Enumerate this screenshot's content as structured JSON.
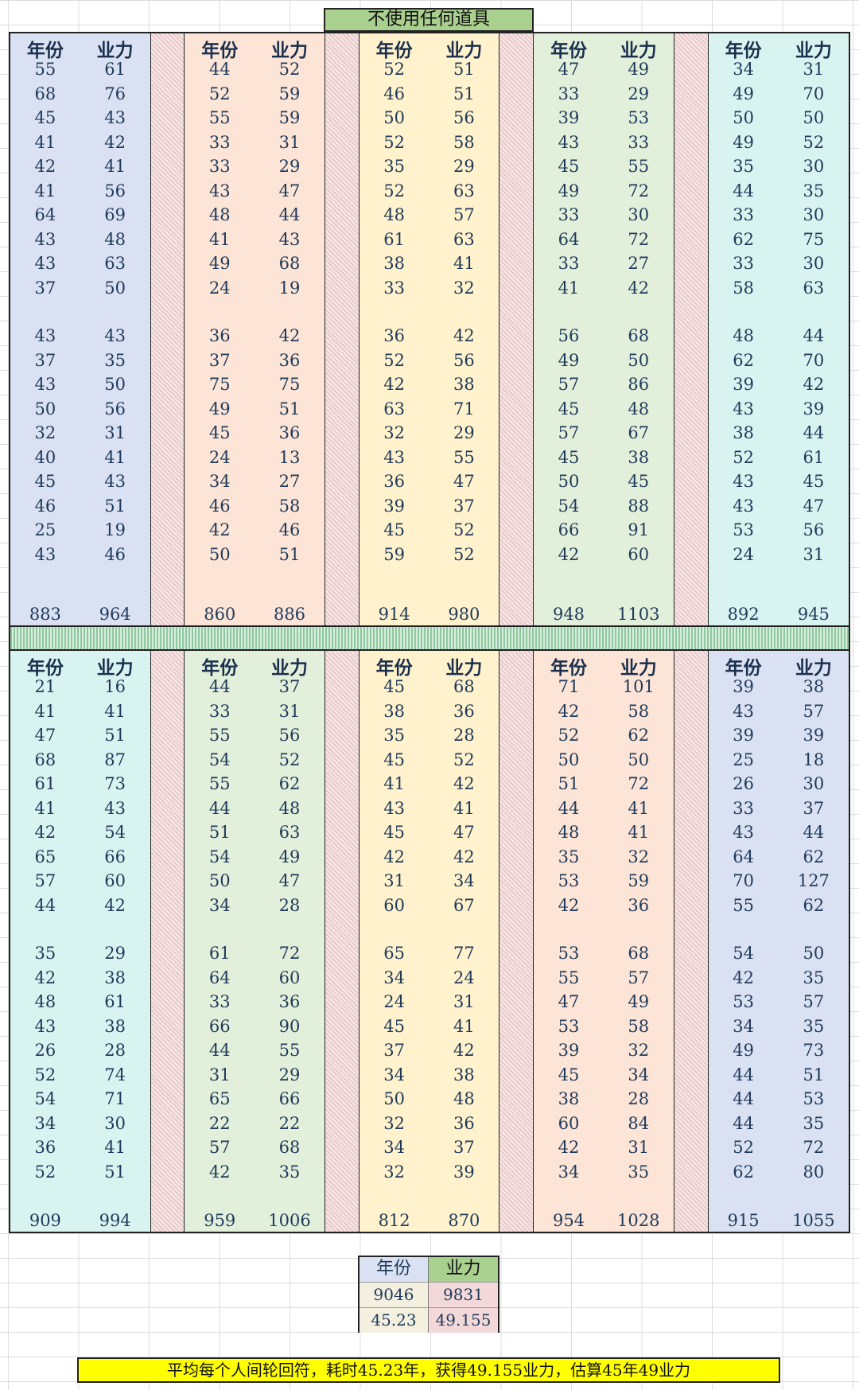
{
  "title": "不使用任何道具",
  "header": {
    "year": "年份",
    "karma": "业力"
  },
  "top_columns": [
    {
      "color": "blue",
      "rows": [
        [
          55,
          61
        ],
        [
          68,
          76
        ],
        [
          45,
          43
        ],
        [
          41,
          42
        ],
        [
          42,
          41
        ],
        [
          41,
          56
        ],
        [
          64,
          69
        ],
        [
          43,
          48
        ],
        [
          43,
          63
        ],
        [
          37,
          50
        ],
        [
          43,
          43
        ],
        [
          37,
          35
        ],
        [
          43,
          50
        ],
        [
          50,
          56
        ],
        [
          32,
          31
        ],
        [
          40,
          41
        ],
        [
          45,
          43
        ],
        [
          46,
          51
        ],
        [
          25,
          19
        ],
        [
          43,
          46
        ]
      ],
      "totals": [
        883,
        964
      ]
    },
    {
      "color": "orange",
      "rows": [
        [
          44,
          52
        ],
        [
          52,
          59
        ],
        [
          55,
          59
        ],
        [
          33,
          31
        ],
        [
          33,
          29
        ],
        [
          43,
          47
        ],
        [
          48,
          44
        ],
        [
          41,
          43
        ],
        [
          49,
          68
        ],
        [
          24,
          19
        ],
        [
          36,
          42
        ],
        [
          37,
          36
        ],
        [
          75,
          75
        ],
        [
          49,
          51
        ],
        [
          45,
          36
        ],
        [
          24,
          13
        ],
        [
          34,
          27
        ],
        [
          46,
          58
        ],
        [
          42,
          46
        ],
        [
          50,
          51
        ]
      ],
      "totals": [
        860,
        886
      ]
    },
    {
      "color": "yellow",
      "rows": [
        [
          52,
          51
        ],
        [
          46,
          51
        ],
        [
          50,
          56
        ],
        [
          52,
          58
        ],
        [
          35,
          29
        ],
        [
          52,
          63
        ],
        [
          48,
          57
        ],
        [
          61,
          63
        ],
        [
          38,
          41
        ],
        [
          33,
          32
        ],
        [
          36,
          42
        ],
        [
          52,
          56
        ],
        [
          42,
          38
        ],
        [
          63,
          71
        ],
        [
          32,
          29
        ],
        [
          43,
          55
        ],
        [
          36,
          47
        ],
        [
          39,
          37
        ],
        [
          45,
          52
        ],
        [
          59,
          52
        ]
      ],
      "totals": [
        914,
        980
      ]
    },
    {
      "color": "green",
      "rows": [
        [
          47,
          49
        ],
        [
          33,
          29
        ],
        [
          39,
          53
        ],
        [
          43,
          33
        ],
        [
          45,
          55
        ],
        [
          49,
          72
        ],
        [
          33,
          30
        ],
        [
          64,
          72
        ],
        [
          33,
          27
        ],
        [
          41,
          42
        ],
        [
          56,
          68
        ],
        [
          49,
          50
        ],
        [
          57,
          86
        ],
        [
          45,
          48
        ],
        [
          57,
          67
        ],
        [
          45,
          38
        ],
        [
          50,
          45
        ],
        [
          54,
          88
        ],
        [
          66,
          91
        ],
        [
          42,
          60
        ]
      ],
      "totals": [
        948,
        1103
      ]
    },
    {
      "color": "cyan",
      "rows": [
        [
          34,
          31
        ],
        [
          49,
          70
        ],
        [
          50,
          50
        ],
        [
          49,
          52
        ],
        [
          35,
          30
        ],
        [
          44,
          35
        ],
        [
          33,
          30
        ],
        [
          62,
          75
        ],
        [
          33,
          30
        ],
        [
          58,
          63
        ],
        [
          48,
          44
        ],
        [
          62,
          70
        ],
        [
          39,
          42
        ],
        [
          43,
          39
        ],
        [
          38,
          44
        ],
        [
          52,
          61
        ],
        [
          43,
          45
        ],
        [
          43,
          47
        ],
        [
          53,
          56
        ],
        [
          24,
          31
        ]
      ],
      "totals": [
        892,
        945
      ]
    }
  ],
  "bottom_columns": [
    {
      "color": "cyan",
      "rows": [
        [
          21,
          16
        ],
        [
          41,
          41
        ],
        [
          47,
          51
        ],
        [
          68,
          87
        ],
        [
          61,
          73
        ],
        [
          41,
          43
        ],
        [
          42,
          54
        ],
        [
          65,
          66
        ],
        [
          57,
          60
        ],
        [
          44,
          42
        ],
        [
          35,
          29
        ],
        [
          42,
          38
        ],
        [
          48,
          61
        ],
        [
          43,
          38
        ],
        [
          26,
          28
        ],
        [
          52,
          74
        ],
        [
          54,
          71
        ],
        [
          34,
          30
        ],
        [
          36,
          41
        ],
        [
          52,
          51
        ]
      ],
      "totals": [
        909,
        994
      ]
    },
    {
      "color": "green",
      "rows": [
        [
          44,
          37
        ],
        [
          33,
          31
        ],
        [
          55,
          56
        ],
        [
          54,
          52
        ],
        [
          55,
          62
        ],
        [
          44,
          48
        ],
        [
          51,
          63
        ],
        [
          54,
          49
        ],
        [
          50,
          47
        ],
        [
          34,
          28
        ],
        [
          61,
          72
        ],
        [
          64,
          60
        ],
        [
          33,
          36
        ],
        [
          66,
          90
        ],
        [
          44,
          55
        ],
        [
          31,
          29
        ],
        [
          65,
          66
        ],
        [
          22,
          22
        ],
        [
          57,
          68
        ],
        [
          42,
          35
        ]
      ],
      "totals": [
        959,
        1006
      ]
    },
    {
      "color": "yellow",
      "rows": [
        [
          45,
          68
        ],
        [
          38,
          36
        ],
        [
          35,
          28
        ],
        [
          45,
          52
        ],
        [
          41,
          42
        ],
        [
          43,
          41
        ],
        [
          45,
          47
        ],
        [
          42,
          42
        ],
        [
          31,
          34
        ],
        [
          60,
          67
        ],
        [
          65,
          77
        ],
        [
          34,
          24
        ],
        [
          24,
          31
        ],
        [
          45,
          41
        ],
        [
          37,
          42
        ],
        [
          34,
          38
        ],
        [
          50,
          48
        ],
        [
          32,
          36
        ],
        [
          34,
          37
        ],
        [
          32,
          39
        ]
      ],
      "totals": [
        812,
        870
      ]
    },
    {
      "color": "orange",
      "rows": [
        [
          71,
          101
        ],
        [
          42,
          58
        ],
        [
          52,
          62
        ],
        [
          50,
          50
        ],
        [
          51,
          72
        ],
        [
          44,
          41
        ],
        [
          48,
          41
        ],
        [
          35,
          32
        ],
        [
          53,
          59
        ],
        [
          42,
          36
        ],
        [
          53,
          68
        ],
        [
          55,
          57
        ],
        [
          47,
          49
        ],
        [
          53,
          58
        ],
        [
          39,
          32
        ],
        [
          45,
          34
        ],
        [
          38,
          28
        ],
        [
          60,
          84
        ],
        [
          42,
          31
        ],
        [
          34,
          35
        ]
      ],
      "totals": [
        954,
        1028
      ]
    },
    {
      "color": "blue",
      "rows": [
        [
          39,
          38
        ],
        [
          43,
          57
        ],
        [
          39,
          39
        ],
        [
          25,
          18
        ],
        [
          26,
          30
        ],
        [
          33,
          37
        ],
        [
          43,
          44
        ],
        [
          64,
          62
        ],
        [
          70,
          127
        ],
        [
          55,
          62
        ],
        [
          54,
          50
        ],
        [
          42,
          35
        ],
        [
          53,
          57
        ],
        [
          34,
          35
        ],
        [
          49,
          73
        ],
        [
          44,
          51
        ],
        [
          44,
          53
        ],
        [
          44,
          35
        ],
        [
          52,
          72
        ],
        [
          62,
          80
        ]
      ],
      "totals": [
        915,
        1055
      ]
    }
  ],
  "summary": {
    "year_label": "年份",
    "karma_label": "业力",
    "total_year": "9046",
    "total_karma": "9831",
    "avg_year": "45.23",
    "avg_karma": "49.155"
  },
  "note": "平均每个人间轮回符，耗时45.23年，获得49.155业力，估算45年49业力"
}
